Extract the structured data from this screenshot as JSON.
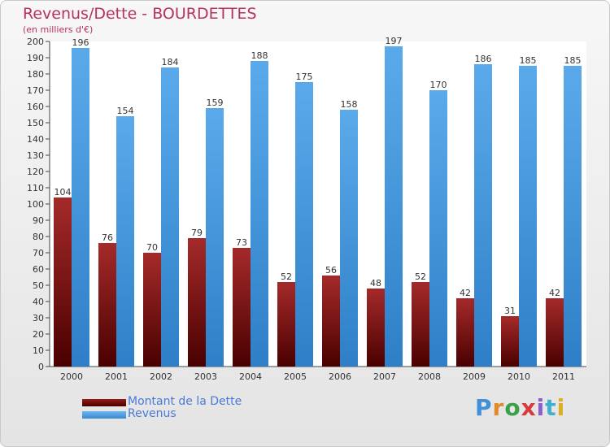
{
  "header": {
    "title": "Revenus/Dette - BOURDETTES",
    "subtitle": "(en milliers d'€)"
  },
  "legend": [
    {
      "label": "Montant de la Dette",
      "color": "#6b0a0a"
    },
    {
      "label": "Revenus",
      "color": "#4f9fe3"
    }
  ],
  "logo": {
    "text": "Proxiti",
    "colors": [
      "#3f8fd9",
      "#e08a2a",
      "#3aa04a",
      "#d83a3a",
      "#8a5fc9",
      "#3fb0d0",
      "#d8b020"
    ]
  },
  "chart_data": {
    "type": "bar",
    "categories": [
      "2000",
      "2001",
      "2002",
      "2003",
      "2004",
      "2005",
      "2006",
      "2007",
      "2008",
      "2009",
      "2010",
      "2011"
    ],
    "series": [
      {
        "name": "Montant de la Dette",
        "values": [
          104,
          76,
          70,
          79,
          73,
          52,
          56,
          48,
          52,
          42,
          31,
          42
        ],
        "color": "#6b0a0a"
      },
      {
        "name": "Revenus",
        "values": [
          196,
          154,
          184,
          159,
          188,
          175,
          158,
          197,
          170,
          186,
          185,
          185
        ],
        "color": "#4f9fe3"
      }
    ],
    "title": "Revenus/Dette - BOURDETTES",
    "ylim": [
      0,
      200
    ],
    "ytick_step": 10,
    "grid": false,
    "legend_position": "bottom-left"
  }
}
